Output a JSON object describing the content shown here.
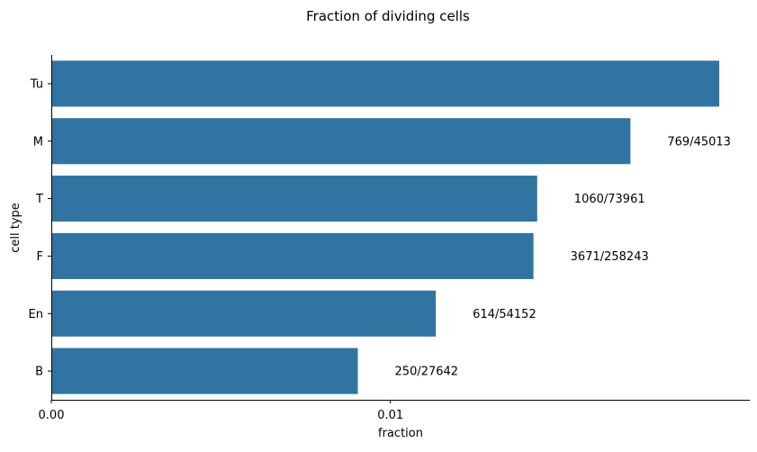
{
  "chart_data": {
    "type": "bar",
    "orientation": "horizontal",
    "title": "Fraction of dividing cells",
    "xlabel": "fraction",
    "ylabel": "cell type",
    "xlim": [
      0,
      0.0206
    ],
    "xticks": [
      0.0,
      0.01
    ],
    "xtick_labels": [
      "0.00",
      "0.01"
    ],
    "grid": false,
    "bar_color": "#3274a1",
    "categories": [
      "Tu",
      "M",
      "T",
      "F",
      "En",
      "B"
    ],
    "values": [
      0.0197,
      0.01708,
      0.01433,
      0.01422,
      0.01134,
      0.00904
    ],
    "annotations": [
      "",
      "769/45013",
      "1060/73961",
      "3671/258243",
      "614/54152",
      "250/27642"
    ]
  }
}
